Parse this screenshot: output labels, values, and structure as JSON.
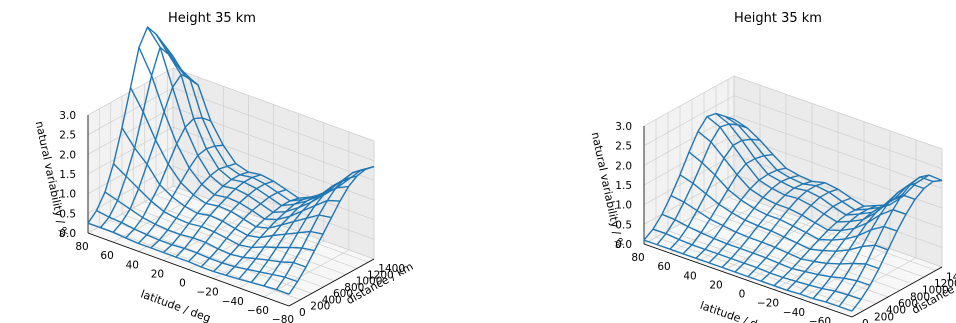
{
  "chart_data": [
    {
      "type": "surface",
      "title": "Height 35 km",
      "xlabel": "latitude / deg",
      "ylabel": "distance / km",
      "zlabel": "natural variability / %",
      "xticks": [
        80,
        60,
        40,
        20,
        0,
        -20,
        -40,
        -60,
        -80
      ],
      "yticks": [
        0,
        200,
        400,
        600,
        800,
        1000,
        1200,
        1400
      ],
      "zticks": [
        "0.0",
        "0.5",
        "1.0",
        "1.5",
        "2.0",
        "2.5",
        "3.0"
      ],
      "xlim": [
        80,
        -80
      ],
      "ylim": [
        0,
        1500
      ],
      "zlim": [
        0,
        3.0
      ],
      "grid": true,
      "color": "#1f77b4",
      "latitude": [
        80,
        70,
        60,
        50,
        40,
        30,
        20,
        10,
        0,
        -10,
        -20,
        -30,
        -40,
        -50,
        -60,
        -70,
        -80
      ],
      "distance": [
        0,
        150,
        300,
        450,
        600,
        750,
        900,
        1050,
        1200,
        1350,
        1500
      ],
      "z": [
        [
          0.25,
          0.45,
          0.8,
          1.4,
          2.2,
          3.1,
          4.0,
          4.4,
          4.1,
          3.7,
          3.3
        ],
        [
          0.25,
          0.4,
          0.7,
          1.2,
          1.8,
          2.6,
          3.4,
          4.0,
          3.7,
          3.3,
          2.9
        ],
        [
          0.25,
          0.38,
          0.6,
          1.0,
          1.5,
          2.0,
          2.6,
          3.1,
          3.3,
          3.1,
          2.8
        ],
        [
          0.22,
          0.33,
          0.5,
          0.8,
          1.1,
          1.5,
          1.9,
          2.2,
          2.3,
          2.2,
          2.0
        ],
        [
          0.2,
          0.3,
          0.45,
          0.65,
          0.9,
          1.15,
          1.4,
          1.6,
          1.65,
          1.6,
          1.5
        ],
        [
          0.2,
          0.28,
          0.42,
          0.6,
          0.78,
          0.95,
          1.1,
          1.2,
          1.25,
          1.2,
          1.15
        ],
        [
          0.2,
          0.28,
          0.42,
          0.58,
          0.72,
          0.85,
          0.95,
          1.05,
          1.1,
          1.1,
          1.05
        ],
        [
          0.2,
          0.3,
          0.45,
          0.62,
          0.78,
          0.9,
          1.0,
          1.1,
          1.15,
          1.15,
          1.1
        ],
        [
          0.2,
          0.3,
          0.45,
          0.6,
          0.75,
          0.88,
          0.98,
          1.05,
          1.1,
          1.1,
          1.05
        ],
        [
          0.18,
          0.28,
          0.4,
          0.55,
          0.68,
          0.8,
          0.9,
          0.95,
          1.0,
          1.0,
          0.95
        ],
        [
          0.18,
          0.28,
          0.38,
          0.5,
          0.62,
          0.72,
          0.8,
          0.85,
          0.9,
          0.9,
          0.85
        ],
        [
          0.2,
          0.3,
          0.42,
          0.55,
          0.68,
          0.8,
          0.9,
          0.98,
          1.05,
          1.05,
          1.0
        ],
        [
          0.22,
          0.35,
          0.5,
          0.68,
          0.85,
          1.0,
          1.1,
          1.2,
          1.25,
          1.25,
          1.2
        ],
        [
          0.25,
          0.4,
          0.58,
          0.78,
          1.0,
          1.2,
          1.35,
          1.45,
          1.5,
          1.5,
          1.45
        ],
        [
          0.28,
          0.45,
          0.65,
          0.9,
          1.15,
          1.4,
          1.6,
          1.75,
          1.85,
          1.85,
          1.8
        ],
        [
          0.3,
          0.5,
          0.75,
          1.0,
          1.3,
          1.6,
          1.85,
          2.05,
          2.15,
          2.2,
          2.15
        ],
        [
          0.3,
          0.5,
          0.75,
          1.05,
          1.35,
          1.65,
          1.95,
          2.2,
          2.35,
          2.4,
          2.35
        ]
      ]
    },
    {
      "type": "surface",
      "title": "Height 35 km",
      "xlabel": "latitude / deg",
      "ylabel": "distance / km",
      "zlabel": "natural variability / %",
      "xticks": [
        80,
        60,
        40,
        20,
        0,
        -20,
        -40,
        -60,
        -80
      ],
      "yticks": [
        0,
        200,
        400,
        600,
        800,
        1000,
        1200,
        1400
      ],
      "zticks": [
        "0.0",
        "0.5",
        "1.0",
        "1.5",
        "2.0",
        "2.5",
        "3.0"
      ],
      "xlim": [
        80,
        -80
      ],
      "ylim": [
        0,
        1500
      ],
      "zlim": [
        0,
        3.0
      ],
      "grid": true,
      "color": "#1f77b4",
      "latitude": [
        80,
        70,
        60,
        50,
        40,
        30,
        20,
        10,
        0,
        -10,
        -20,
        -30,
        -40,
        -50,
        -60,
        -70,
        -80
      ],
      "distance": [
        0,
        150,
        300,
        450,
        600,
        750,
        900,
        1050,
        1200,
        1350,
        1500
      ],
      "z": [
        [
          0.1,
          0.25,
          0.5,
          0.85,
          1.25,
          1.7,
          2.1,
          2.35,
          2.3,
          2.1,
          1.9
        ],
        [
          0.1,
          0.25,
          0.48,
          0.8,
          1.15,
          1.55,
          1.95,
          2.2,
          2.15,
          2.0,
          1.8
        ],
        [
          0.1,
          0.22,
          0.42,
          0.7,
          1.0,
          1.35,
          1.65,
          1.85,
          1.85,
          1.75,
          1.6
        ],
        [
          0.1,
          0.2,
          0.38,
          0.6,
          0.85,
          1.1,
          1.35,
          1.5,
          1.5,
          1.45,
          1.35
        ],
        [
          0.1,
          0.2,
          0.35,
          0.55,
          0.75,
          0.95,
          1.1,
          1.2,
          1.22,
          1.2,
          1.12
        ],
        [
          0.1,
          0.2,
          0.33,
          0.5,
          0.68,
          0.85,
          1.0,
          1.1,
          1.15,
          1.12,
          1.05
        ],
        [
          0.1,
          0.2,
          0.33,
          0.48,
          0.65,
          0.8,
          0.95,
          1.05,
          1.1,
          1.08,
          1.02
        ],
        [
          0.1,
          0.2,
          0.33,
          0.48,
          0.64,
          0.8,
          0.95,
          1.08,
          1.15,
          1.15,
          1.1
        ],
        [
          0.1,
          0.2,
          0.32,
          0.46,
          0.6,
          0.75,
          0.9,
          1.02,
          1.1,
          1.1,
          1.05
        ],
        [
          0.1,
          0.18,
          0.3,
          0.43,
          0.56,
          0.7,
          0.82,
          0.92,
          0.98,
          0.98,
          0.94
        ],
        [
          0.1,
          0.18,
          0.28,
          0.4,
          0.52,
          0.64,
          0.75,
          0.83,
          0.88,
          0.88,
          0.85
        ],
        [
          0.1,
          0.2,
          0.32,
          0.45,
          0.6,
          0.74,
          0.86,
          0.96,
          1.02,
          1.02,
          0.98
        ],
        [
          0.12,
          0.22,
          0.36,
          0.52,
          0.7,
          0.88,
          1.02,
          1.12,
          1.18,
          1.18,
          1.12
        ],
        [
          0.12,
          0.25,
          0.42,
          0.62,
          0.85,
          1.08,
          1.28,
          1.42,
          1.5,
          1.5,
          1.45
        ],
        [
          0.15,
          0.3,
          0.5,
          0.75,
          1.05,
          1.35,
          1.6,
          1.8,
          1.92,
          1.95,
          1.9
        ],
        [
          0.15,
          0.32,
          0.55,
          0.85,
          1.2,
          1.55,
          1.85,
          2.1,
          2.25,
          2.3,
          2.22
        ],
        [
          0.15,
          0.32,
          0.55,
          0.85,
          1.2,
          1.55,
          1.85,
          2.1,
          2.25,
          2.3,
          2.2
        ]
      ]
    }
  ]
}
